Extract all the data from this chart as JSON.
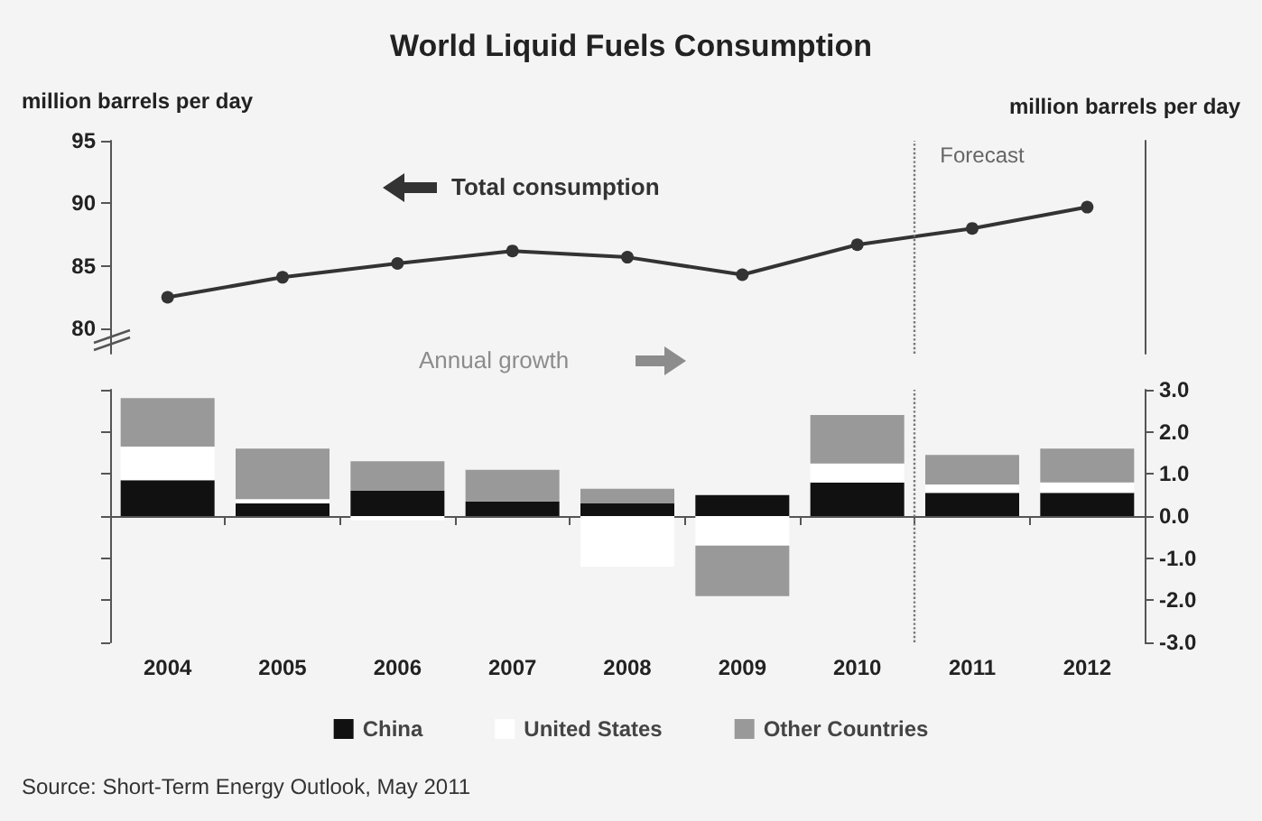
{
  "chart_data": [
    {
      "type": "line",
      "title": "World Liquid Fuels Consumption",
      "ylabel": "million barrels per day",
      "x": [
        2004,
        2005,
        2006,
        2007,
        2008,
        2009,
        2010,
        2011,
        2012
      ],
      "values": [
        82.5,
        84.1,
        85.2,
        86.2,
        85.7,
        84.3,
        86.7,
        88.0,
        89.7
      ],
      "color": "#333333",
      "marker": "circle",
      "xlim": [
        2003.5,
        2012.5
      ],
      "ylim": [
        78,
        95
      ],
      "yticks": [
        80,
        85,
        90,
        95
      ],
      "tick_labels": "y",
      "annotations": [
        "Total consumption"
      ],
      "ref_lines": [
        {
          "axis": "x",
          "value": 2010.5,
          "label": "Forecast",
          "line_style": "dotted",
          "color": "#777777"
        }
      ]
    },
    {
      "type": "bar",
      "stacked": true,
      "x": [
        2004,
        2005,
        2006,
        2007,
        2008,
        2009,
        2010,
        2011,
        2012
      ],
      "xlim": [
        2003.5,
        2012.5
      ],
      "xticks": [
        2004,
        2005,
        2006,
        2007,
        2008,
        2009,
        2010,
        2011,
        2012
      ],
      "series": [
        {
          "name": "China",
          "color": "#111111",
          "axis": "y2",
          "values": [
            0.85,
            0.3,
            0.6,
            0.35,
            0.3,
            0.5,
            0.8,
            0.55,
            0.55
          ]
        },
        {
          "name": "United States",
          "color": "#ffffff",
          "axis": "y2",
          "values": [
            0.8,
            0.1,
            -0.1,
            0,
            -1.2,
            -0.7,
            0.45,
            0.2,
            0.25
          ]
        },
        {
          "name": "Other Countries",
          "color": "#999999",
          "axis": "y2",
          "values": [
            1.15,
            1.2,
            0.7,
            0.75,
            0.35,
            -1.2,
            1.15,
            0.7,
            0.8
          ]
        }
      ],
      "y2label": "million barrels per day",
      "y2lim": [
        -3,
        3
      ],
      "y2ticks": [
        {
          "value": -3,
          "label": "-3.0"
        },
        {
          "value": -2,
          "label": "-2.0"
        },
        {
          "value": -1,
          "label": "-1.0"
        },
        {
          "value": 0,
          "label": "0.0"
        },
        {
          "value": 1,
          "label": "1.0"
        },
        {
          "value": 2,
          "label": "2.0"
        },
        {
          "value": 3,
          "label": "3.0"
        }
      ],
      "legend": "bottom",
      "annotations": [
        "Annual growth",
        "Source: Short-Term Energy Outlook, May 2011"
      ],
      "ref_lines": [
        {
          "axis": "x",
          "value": 2010.5,
          "line_style": "dotted",
          "color": "#777777"
        }
      ]
    }
  ]
}
